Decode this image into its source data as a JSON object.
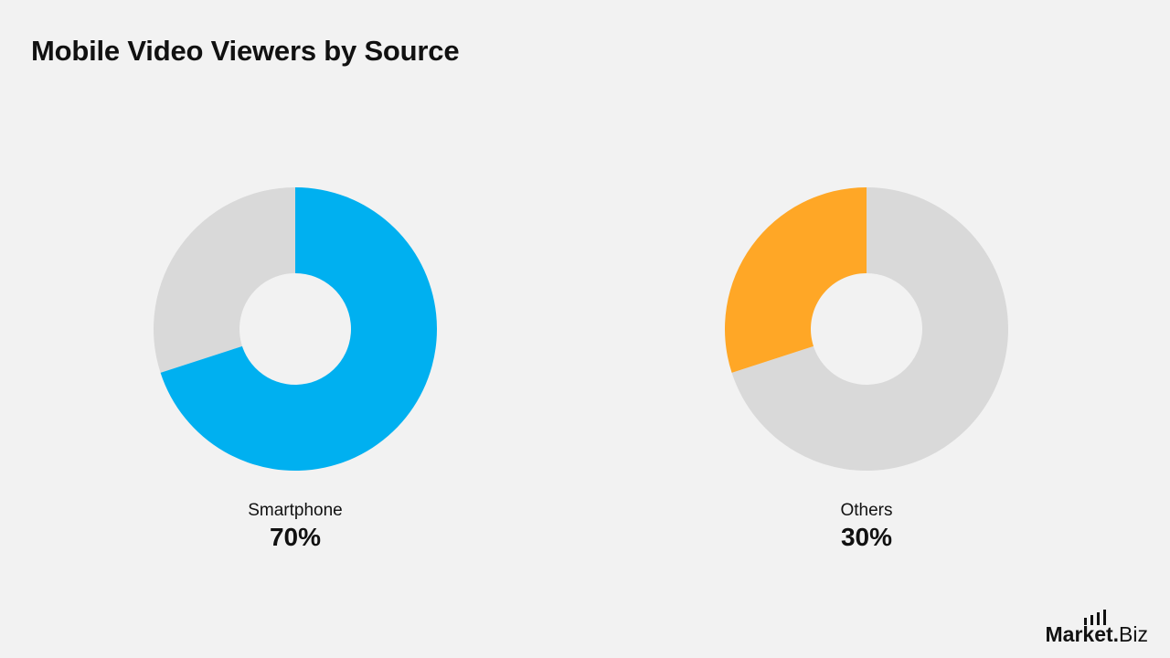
{
  "title": "Mobile Video Viewers by Source",
  "brand": {
    "bold_text": "Market",
    "dot_text": ".",
    "light_text": "Biz",
    "icon": "bar-chart-icon"
  },
  "colors": {
    "background": "#f2f2f2",
    "track": "#d9d9d9",
    "smartphone": "#00b0f0",
    "others": "#ffa726",
    "text": "#111111"
  },
  "chart_data": [
    {
      "type": "pie",
      "variant": "donut",
      "label": "Smartphone",
      "value": 70,
      "value_label": "70%",
      "total": 100,
      "direction": "clockwise",
      "start": "top",
      "color": "#00b0f0",
      "track_color": "#d9d9d9"
    },
    {
      "type": "pie",
      "variant": "donut",
      "label": "Others",
      "value": 30,
      "value_label": "30%",
      "total": 100,
      "direction": "counterclockwise",
      "start": "top",
      "color": "#ffa726",
      "track_color": "#d9d9d9"
    }
  ]
}
